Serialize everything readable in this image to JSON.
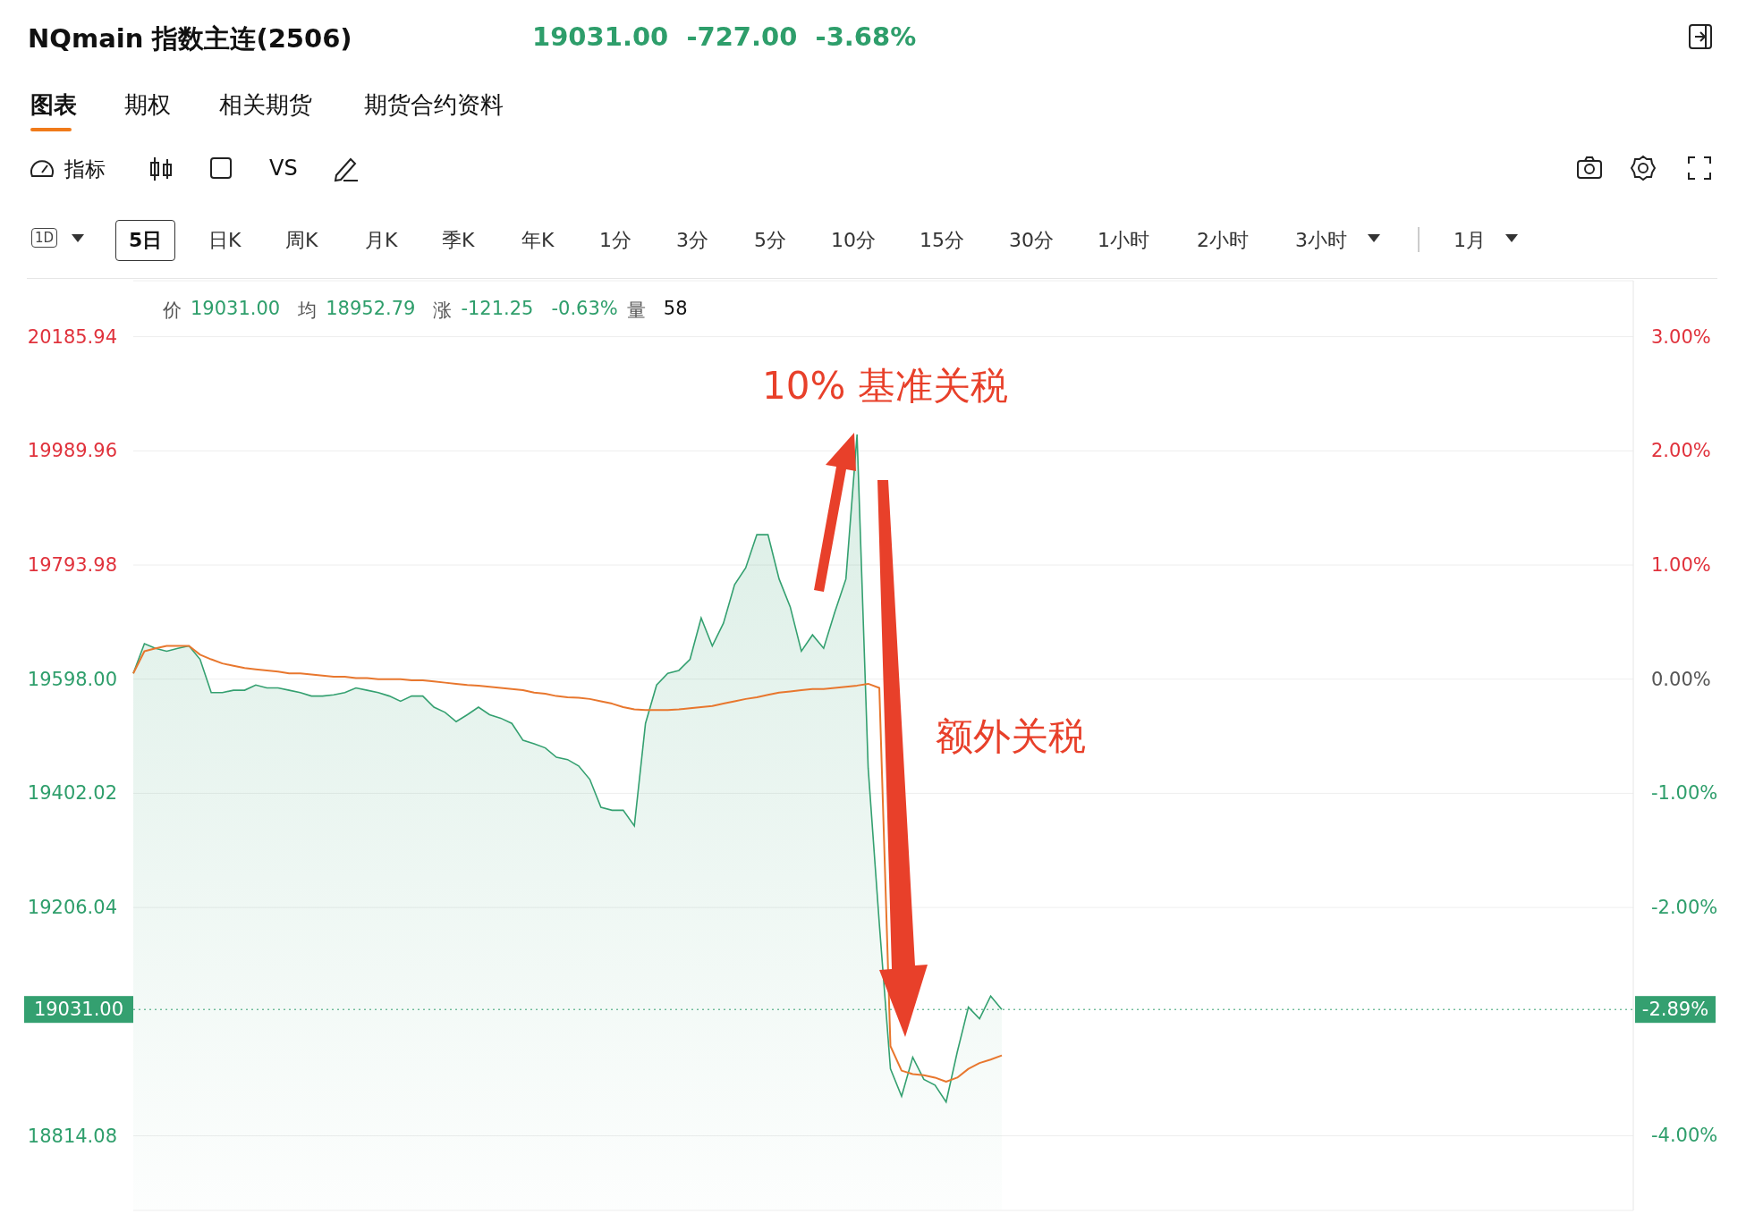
{
  "chart_data": {
    "type": "area",
    "title": "NQmain 指数主连(2506)",
    "subtitle": "19031.00  -727.00  -3.68%",
    "categories": [
      null,
      null,
      null,
      null,
      null,
      null,
      null,
      null,
      null,
      null,
      null,
      null,
      null,
      null,
      null,
      null,
      null,
      null,
      null,
      null,
      null,
      null,
      null,
      null,
      null,
      null,
      null,
      null,
      null,
      null,
      null,
      null,
      null,
      null,
      null,
      null,
      null,
      null,
      null,
      null,
      null,
      null,
      null,
      null,
      null,
      null,
      null,
      null,
      null,
      null,
      null,
      null,
      null,
      null,
      null,
      null,
      null,
      null,
      null,
      null,
      null,
      null,
      null,
      null,
      null,
      null,
      null,
      null,
      null,
      null,
      null,
      null,
      null,
      null,
      null,
      null,
      null,
      null,
      null
    ],
    "series": [
      {
        "color": "#34a070",
        "values": [
          19608,
          19659,
          19651,
          19646,
          19651,
          19655,
          19632,
          19575,
          19575,
          19579,
          19579,
          19588,
          19583,
          19583,
          19579,
          19575,
          19569,
          19569,
          19571,
          19575,
          19583,
          19579,
          19575,
          19569,
          19560,
          19569,
          19569,
          19550,
          19541,
          19525,
          19537,
          19550,
          19537,
          19531,
          19522,
          19493,
          19487,
          19480,
          19464,
          19460,
          19449,
          19426,
          19378,
          19373,
          19373,
          19346,
          19522,
          19588,
          19608,
          19613,
          19632,
          19703,
          19655,
          19694,
          19760,
          19789,
          19846,
          19846,
          19770,
          19722,
          19646,
          19674,
          19651,
          19713,
          19770,
          20018,
          19445,
          19178,
          18929,
          18882,
          18949,
          18911,
          18901,
          18872,
          18958,
          19035,
          19015,
          19054,
          19031
        ]
      },
      {
        "type": "line",
        "color": "#e8772e",
        "values": [
          19608,
          19646,
          19651,
          19655,
          19655,
          19655,
          19640,
          19632,
          19625,
          19621,
          19617,
          19615,
          19613,
          19611,
          19608,
          19608,
          19606,
          19604,
          19602,
          19602,
          19600,
          19600,
          19598,
          19598,
          19598,
          19596,
          19596,
          19594,
          19592,
          19590,
          19588,
          19587,
          19585,
          19583,
          19581,
          19579,
          19575,
          19573,
          19569,
          19567,
          19566,
          19564,
          19560,
          19556,
          19550,
          19546,
          19545,
          19545,
          19545,
          19546,
          19548,
          19550,
          19552,
          19556,
          19560,
          19564,
          19567,
          19571,
          19575,
          19577,
          19579,
          19581,
          19581,
          19583,
          19585,
          19587,
          19590,
          19583,
          18968,
          18926,
          18920,
          18918,
          18914,
          18907,
          18914,
          18929,
          18939,
          18945,
          18952
        ]
      }
    ],
    "ylim": [
      18686,
      20282
    ],
    "yticks": [
      {
        "value": 18814.08,
        "label": "18814.08"
      },
      {
        "value": 19206.04,
        "label": "19206.04"
      },
      {
        "value": 19402.02,
        "label": "19402.02"
      },
      {
        "value": 19598,
        "label": "19598.00"
      },
      {
        "value": 19793.98,
        "label": "19793.98"
      },
      {
        "value": 19989.96,
        "label": "19989.96"
      },
      {
        "value": 20185.94,
        "label": "20185.94"
      }
    ],
    "y2lim": [
      -4.654,
      3.49
    ],
    "y2ticks": [
      {
        "value": -4,
        "label": "-4.00%"
      },
      {
        "value": -2,
        "label": "-2.00%"
      },
      {
        "value": -1,
        "label": "-1.00%"
      },
      {
        "value": 0,
        "label": "0.00%"
      },
      {
        "value": 1,
        "label": "1.00%"
      },
      {
        "value": 2,
        "label": "2.00%"
      },
      {
        "value": 3,
        "label": "3.00%"
      }
    ],
    "ref_lines": [
      {
        "axis": "y",
        "value": 19031,
        "label": "19031.00",
        "color": "#34a070",
        "line_style": "dotted"
      }
    ],
    "grid": "y",
    "annotations": [
      "图表",
      "期权",
      "相关期货",
      "期货合约资料",
      "指标",
      "VS",
      "1D",
      "5日",
      "日K",
      "周K",
      "月K",
      "季K",
      "年K",
      "1分",
      "3分",
      "5分",
      "10分",
      "15分",
      "30分",
      "1小时",
      "2小时",
      "3小时",
      "1月",
      "价",
      "19031.00",
      "均",
      "18952.79",
      "涨",
      "-121.25",
      "-0.63%",
      "量",
      "58",
      "10% 基准关税",
      "额外关税",
      "-2.89%"
    ]
  }
}
